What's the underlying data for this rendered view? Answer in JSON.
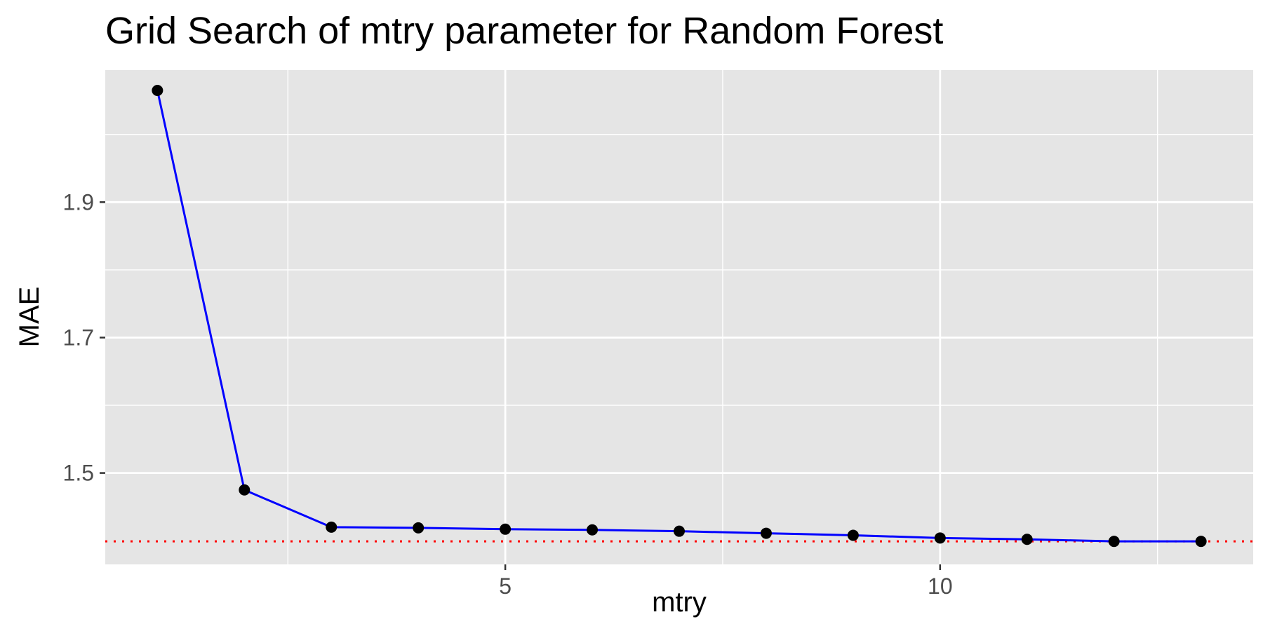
{
  "chart_data": {
    "type": "line",
    "title": "Grid Search of mtry parameter for Random Forest",
    "xlabel": "mtry",
    "ylabel": "MAE",
    "x": [
      1,
      2,
      3,
      4,
      5,
      6,
      7,
      8,
      9,
      10,
      11,
      12,
      13
    ],
    "series": [
      {
        "values": [
          2.065,
          1.475,
          1.42,
          1.419,
          1.417,
          1.416,
          1.414,
          1.411,
          1.408,
          1.404,
          1.402,
          1.399,
          1.399
        ]
      }
    ],
    "reference_line": {
      "y": 1.399,
      "style": "dotted",
      "color": "#ff0000"
    },
    "xlim": [
      0.4,
      13.6
    ],
    "ylim": [
      1.365,
      2.095
    ],
    "x_ticks": [
      {
        "value": 5,
        "label": "5"
      },
      {
        "value": 10,
        "label": "10"
      }
    ],
    "y_ticks": [
      {
        "value": 1.5,
        "label": "1.5"
      },
      {
        "value": 1.7,
        "label": "1.7"
      },
      {
        "value": 1.9,
        "label": "1.9"
      }
    ],
    "x_minor_ticks": [
      2.5,
      7.5,
      12.5
    ],
    "y_minor_ticks": [
      1.6,
      1.8,
      2.0
    ],
    "grid": true,
    "legend": "none",
    "colors": {
      "panel_background": "#e5e5e5",
      "gridline": "#ffffff",
      "line": "#0000ff",
      "point": "#000000",
      "reference": "#ff0000",
      "tick_label": "#4d4d4d",
      "tick_mark": "#333333"
    }
  }
}
